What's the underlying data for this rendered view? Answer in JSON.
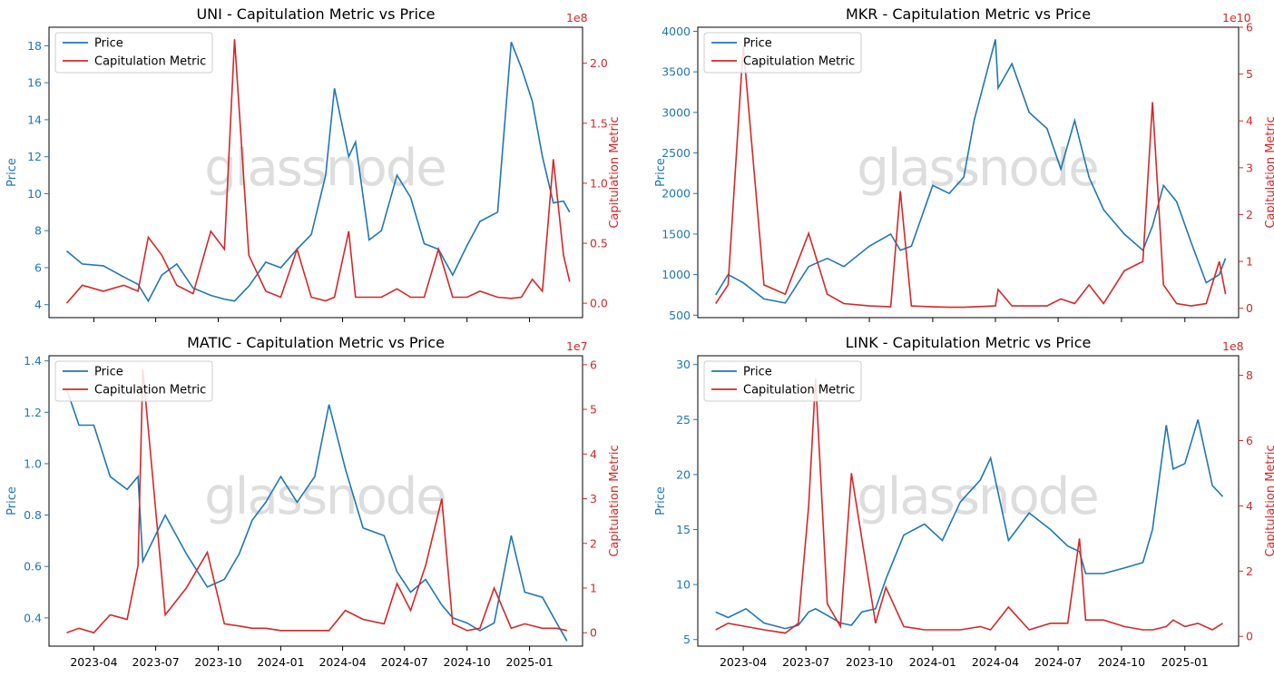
{
  "colors": {
    "price": "#1f77b4",
    "metric": "#d62728"
  },
  "watermark": "glassnode",
  "chart_data": [
    {
      "type": "line",
      "title": "UNI - Capitulation Metric vs Price",
      "ylabel": "Price",
      "y2label": "Capitulation Metric",
      "y2_multiplier": "1e8",
      "legend": [
        "Price",
        "Capitulation Metric"
      ],
      "legend_loc": "upper left",
      "ylim": [
        3.3,
        19.0
      ],
      "yticks": [
        4,
        6,
        8,
        10,
        12,
        14,
        16,
        18
      ],
      "y2lim": [
        -0.12,
        2.3
      ],
      "y2ticks": [
        0.0,
        0.5,
        1.0,
        1.5,
        2.0
      ],
      "x": [
        "2023-02-20",
        "2023-03-15",
        "2023-04-15",
        "2023-05-15",
        "2023-06-05",
        "2023-06-20",
        "2023-07-10",
        "2023-08-01",
        "2023-08-25",
        "2023-09-20",
        "2023-10-10",
        "2023-10-25",
        "2023-11-15",
        "2023-12-10",
        "2024-01-01",
        "2024-01-25",
        "2024-02-15",
        "2024-03-07",
        "2024-03-20",
        "2024-04-10",
        "2024-04-20",
        "2024-05-10",
        "2024-05-28",
        "2024-06-20",
        "2024-07-10",
        "2024-07-30",
        "2024-08-20",
        "2024-09-10",
        "2024-10-01",
        "2024-10-20",
        "2024-11-15",
        "2024-12-05",
        "2024-12-20",
        "2025-01-05",
        "2025-01-20",
        "2025-02-05",
        "2025-02-20",
        "2025-03-01"
      ],
      "series": [
        {
          "name": "Price",
          "values": [
            6.9,
            6.2,
            6.1,
            5.5,
            5.1,
            4.2,
            5.6,
            6.2,
            4.9,
            4.5,
            4.3,
            4.2,
            5.0,
            6.3,
            6.0,
            7.0,
            7.8,
            11.0,
            15.7,
            12.0,
            12.8,
            7.5,
            8.0,
            11.0,
            9.8,
            7.3,
            7.0,
            5.6,
            7.2,
            8.5,
            9.0,
            18.2,
            16.8,
            15.0,
            12.0,
            9.5,
            9.6,
            9.0
          ]
        },
        {
          "name": "Capitulation Metric",
          "values": [
            0.0,
            0.15,
            0.1,
            0.15,
            0.1,
            0.55,
            0.4,
            0.15,
            0.08,
            0.6,
            0.45,
            2.2,
            0.4,
            0.1,
            0.05,
            0.45,
            0.05,
            0.02,
            0.05,
            0.6,
            0.05,
            0.05,
            0.05,
            0.12,
            0.05,
            0.05,
            0.45,
            0.05,
            0.05,
            0.1,
            0.05,
            0.04,
            0.05,
            0.2,
            0.1,
            1.2,
            0.4,
            0.18
          ]
        }
      ]
    },
    {
      "type": "line",
      "title": "MKR - Capitulation Metric vs Price",
      "ylabel": "Price",
      "y2label": "Capitulation Metric",
      "y2_multiplier": "1e10",
      "legend": [
        "Price",
        "Capitulation Metric"
      ],
      "legend_loc": "upper left",
      "ylim": [
        470,
        4050
      ],
      "yticks": [
        500,
        1000,
        1500,
        2000,
        2500,
        3000,
        3500,
        4000
      ],
      "y2lim": [
        -0.2,
        6.0
      ],
      "y2ticks": [
        0,
        1,
        2,
        3,
        4,
        5,
        6
      ],
      "x": [
        "2023-02-20",
        "2023-03-10",
        "2023-04-01",
        "2023-05-01",
        "2023-06-01",
        "2023-07-05",
        "2023-08-01",
        "2023-08-25",
        "2023-10-01",
        "2023-11-01",
        "2023-11-15",
        "2023-12-01",
        "2024-01-01",
        "2024-01-25",
        "2024-02-15",
        "2024-03-01",
        "2024-04-01",
        "2024-04-05",
        "2024-04-25",
        "2024-05-20",
        "2024-06-15",
        "2024-07-05",
        "2024-07-25",
        "2024-08-15",
        "2024-09-05",
        "2024-10-05",
        "2024-11-01",
        "2024-11-15",
        "2024-12-01",
        "2024-12-20",
        "2025-01-10",
        "2025-02-01",
        "2025-02-20",
        "2025-03-01"
      ],
      "series": [
        {
          "name": "Price",
          "values": [
            750,
            1000,
            900,
            700,
            650,
            1100,
            1200,
            1100,
            1350,
            1500,
            1300,
            1350,
            2100,
            2000,
            2200,
            2900,
            3900,
            3300,
            3600,
            3000,
            2800,
            2300,
            2900,
            2200,
            1800,
            1500,
            1300,
            1600,
            2100,
            1900,
            1400,
            900,
            1000,
            1200
          ]
        },
        {
          "name": "Capitulation Metric",
          "values": [
            0.1,
            0.5,
            5.6,
            0.5,
            0.3,
            1.6,
            0.3,
            0.1,
            0.05,
            0.03,
            2.5,
            0.05,
            0.03,
            0.02,
            0.02,
            0.03,
            0.05,
            0.4,
            0.05,
            0.05,
            0.05,
            0.2,
            0.1,
            0.5,
            0.1,
            0.8,
            1.0,
            4.4,
            0.5,
            0.1,
            0.05,
            0.1,
            1.0,
            0.3
          ]
        }
      ]
    },
    {
      "type": "line",
      "title": "MATIC - Capitulation Metric vs Price",
      "ylabel": "Price",
      "y2label": "Capitulation Metric",
      "y2_multiplier": "1e7",
      "legend": [
        "Price",
        "Capitulation Metric"
      ],
      "legend_loc": "upper left",
      "ylim": [
        0.29,
        1.42
      ],
      "yticks": [
        0.4,
        0.6,
        0.8,
        1.0,
        1.2,
        1.4
      ],
      "y2lim": [
        -0.3,
        6.2
      ],
      "y2ticks": [
        0,
        1,
        2,
        3,
        4,
        5,
        6
      ],
      "x": [
        "2023-02-20",
        "2023-03-10",
        "2023-04-01",
        "2023-04-25",
        "2023-05-20",
        "2023-06-05",
        "2023-06-12",
        "2023-07-15",
        "2023-08-15",
        "2023-09-15",
        "2023-10-10",
        "2023-11-01",
        "2023-11-20",
        "2023-12-10",
        "2024-01-01",
        "2024-01-25",
        "2024-02-20",
        "2024-03-12",
        "2024-04-05",
        "2024-05-01",
        "2024-06-01",
        "2024-06-20",
        "2024-07-10",
        "2024-08-01",
        "2024-08-25",
        "2024-09-10",
        "2024-10-01",
        "2024-10-20",
        "2024-11-10",
        "2024-12-05",
        "2024-12-25",
        "2025-01-20",
        "2025-02-10",
        "2025-02-25"
      ],
      "series": [
        {
          "name": "Price",
          "values": [
            1.29,
            1.15,
            1.15,
            0.95,
            0.9,
            0.95,
            0.62,
            0.8,
            0.65,
            0.52,
            0.55,
            0.65,
            0.78,
            0.85,
            0.95,
            0.85,
            0.95,
            1.23,
            0.98,
            0.75,
            0.72,
            0.58,
            0.5,
            0.55,
            0.45,
            0.4,
            0.38,
            0.35,
            0.38,
            0.72,
            0.5,
            0.48,
            0.38,
            0.31
          ]
        },
        {
          "name": "Capitulation Metric",
          "values": [
            0.0,
            0.1,
            0.0,
            0.4,
            0.3,
            1.5,
            5.9,
            0.4,
            1.0,
            1.8,
            0.2,
            0.15,
            0.1,
            0.1,
            0.05,
            0.05,
            0.05,
            0.05,
            0.5,
            0.3,
            0.2,
            1.1,
            0.5,
            1.5,
            3.0,
            0.2,
            0.05,
            0.1,
            1.0,
            0.1,
            0.2,
            0.1,
            0.1,
            0.05
          ]
        }
      ]
    },
    {
      "type": "line",
      "title": "LINK - Capitulation Metric vs Price",
      "ylabel": "Price",
      "y2label": "Capitulation Metric",
      "y2_multiplier": "1e8",
      "legend": [
        "Price",
        "Capitulation Metric"
      ],
      "legend_loc": "upper left",
      "ylim": [
        4.4,
        30.8
      ],
      "yticks": [
        5,
        10,
        15,
        20,
        25,
        30
      ],
      "y2lim": [
        -0.3,
        8.6
      ],
      "y2ticks": [
        0,
        2,
        4,
        6,
        8
      ],
      "x": [
        "2023-02-20",
        "2023-03-10",
        "2023-04-05",
        "2023-05-01",
        "2023-06-01",
        "2023-06-20",
        "2023-07-05",
        "2023-07-15",
        "2023-08-01",
        "2023-08-20",
        "2023-09-05",
        "2023-09-20",
        "2023-10-10",
        "2023-10-25",
        "2023-11-20",
        "2023-12-20",
        "2024-01-15",
        "2024-02-10",
        "2024-03-10",
        "2024-03-25",
        "2024-04-20",
        "2024-05-20",
        "2024-06-20",
        "2024-07-15",
        "2024-08-01",
        "2024-08-10",
        "2024-09-05",
        "2024-10-05",
        "2024-11-01",
        "2024-11-15",
        "2024-12-05",
        "2024-12-15",
        "2025-01-01",
        "2025-01-20",
        "2025-02-10",
        "2025-02-25"
      ],
      "series": [
        {
          "name": "Price",
          "values": [
            7.5,
            7.0,
            7.8,
            6.5,
            6.0,
            6.3,
            7.5,
            7.8,
            7.2,
            6.5,
            6.3,
            7.5,
            7.8,
            10.5,
            14.5,
            15.5,
            14.0,
            17.5,
            19.5,
            21.5,
            14.0,
            16.5,
            15.0,
            13.5,
            13.0,
            11.0,
            11.0,
            11.5,
            12.0,
            15.0,
            24.5,
            20.5,
            21.0,
            25.0,
            19.0,
            18.0
          ]
        },
        {
          "name": "Capitulation Metric",
          "values": [
            0.2,
            0.4,
            0.3,
            0.2,
            0.1,
            0.4,
            4.0,
            7.9,
            1.0,
            0.3,
            5.0,
            3.0,
            0.4,
            1.5,
            0.3,
            0.2,
            0.2,
            0.2,
            0.3,
            0.2,
            0.9,
            0.2,
            0.4,
            0.4,
            3.0,
            0.5,
            0.5,
            0.3,
            0.2,
            0.2,
            0.3,
            0.5,
            0.3,
            0.4,
            0.2,
            0.4
          ]
        }
      ]
    }
  ],
  "shared_x": {
    "xlim": [
      "2023-01-25",
      "2025-03-20"
    ],
    "tick_labels": [
      "2023-04",
      "2023-07",
      "2023-10",
      "2024-01",
      "2024-04",
      "2024-07",
      "2024-10",
      "2025-01"
    ],
    "tick_dates": [
      "2023-04-01",
      "2023-07-01",
      "2023-10-01",
      "2024-01-01",
      "2024-04-01",
      "2024-07-01",
      "2024-10-01",
      "2025-01-01"
    ]
  }
}
